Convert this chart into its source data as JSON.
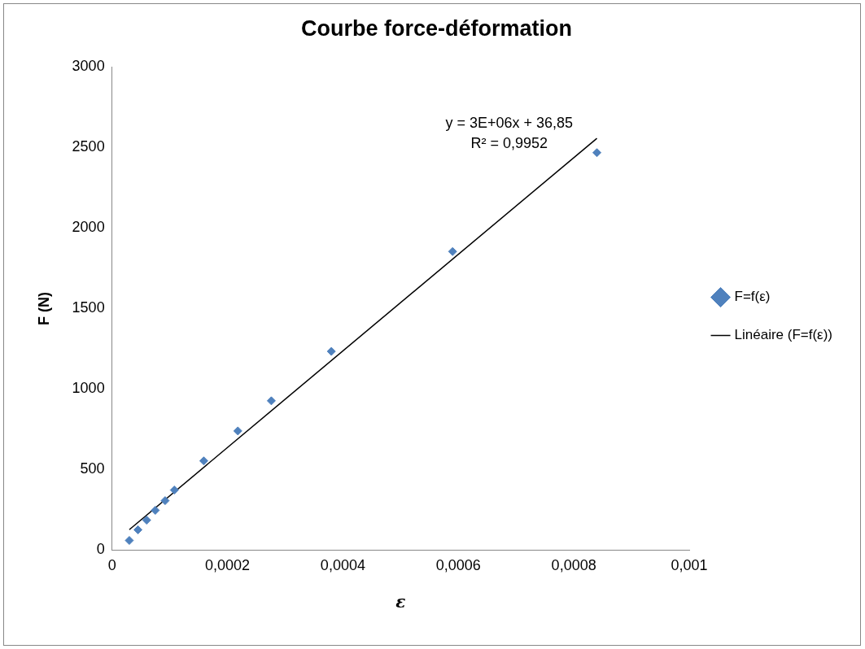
{
  "chart_data": {
    "type": "scatter",
    "title": "Courbe force-déformation",
    "xlabel": "ε",
    "ylabel": "F (N)",
    "annotations": [
      "y = 3E+06x + 36,85",
      "R² = 0,9952"
    ],
    "xlim": [
      0,
      0.001
    ],
    "xticks": [
      0,
      {
        "value": 0.0002,
        "label": "0,0002"
      },
      {
        "value": 0.0004,
        "label": "0,0004"
      },
      {
        "value": 0.0006,
        "label": "0,0006"
      },
      {
        "value": 0.0008,
        "label": "0,0008"
      },
      {
        "value": 0.001,
        "label": "0,001"
      }
    ],
    "ylim": [
      0,
      3000
    ],
    "yticks": [
      0,
      500,
      1000,
      1500,
      2000,
      2500,
      3000
    ],
    "legend": "right",
    "series": [
      {
        "name": "F=f(ε)",
        "marker": "diamond",
        "color": "#4f81bd",
        "x": [
          3e-05,
          4.5e-05,
          6e-05,
          7.5e-05,
          9.2e-05,
          0.000108,
          0.000159,
          0.000218,
          0.000276,
          0.00038,
          0.00059,
          0.00084
        ],
        "values": [
          60,
          126,
          186,
          247,
          307,
          373,
          554,
          740,
          927,
          1234,
          1854,
          2468
        ]
      },
      {
        "name": "Linéaire (F=f(ε))",
        "type": "line",
        "marker": "none",
        "line_style": "solid",
        "color": "#000000",
        "x": [
          3e-05,
          0.00084
        ],
        "values": [
          127,
          2557
        ]
      }
    ]
  }
}
